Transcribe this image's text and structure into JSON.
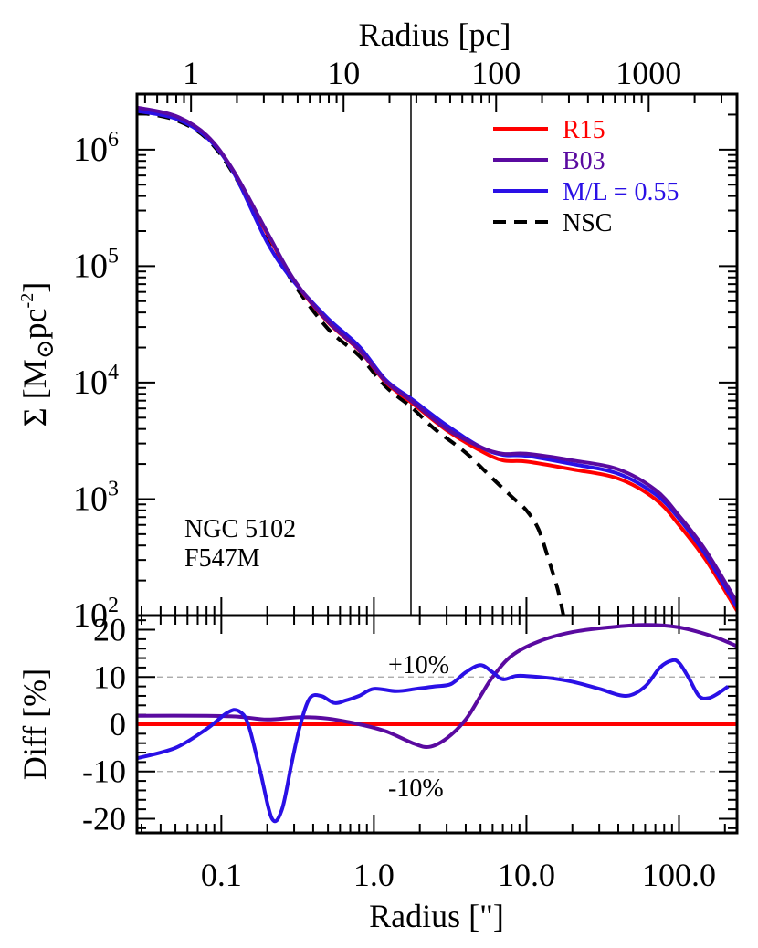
{
  "chart_data": [
    {
      "type": "line",
      "panel": "top",
      "top_xlabel": "Radius [pc]",
      "top_xticks": [
        "1",
        "10",
        "100",
        "1000"
      ],
      "top_xtick_values": [
        1,
        10,
        100,
        1000
      ],
      "ylabel": "Σ [M⊙pc⁻²]",
      "ylabel_parts": {
        "sym": "Σ [M",
        "sun": "⊙",
        "pc": "pc",
        "exp": "-2",
        "close": "]"
      },
      "yscale": "log",
      "ylim": [
        100,
        3000000
      ],
      "yticks": [
        {
          "base": "10",
          "exp": "2",
          "value": 100
        },
        {
          "base": "10",
          "exp": "3",
          "value": 1000
        },
        {
          "base": "10",
          "exp": "4",
          "value": 10000
        },
        {
          "base": "10",
          "exp": "5",
          "value": 100000
        },
        {
          "base": "10",
          "exp": "6",
          "value": 1000000
        }
      ],
      "xscale": "log",
      "xlim": [
        0.028,
        240
      ],
      "vline_x": 1.75,
      "annotation": [
        "NGC 5102",
        "F547M"
      ],
      "legend_position": "top-right",
      "series": [
        {
          "name": "R15",
          "color": "#ff0000",
          "style": "solid",
          "x": [
            0.028,
            0.05,
            0.08,
            0.12,
            0.2,
            0.3,
            0.5,
            0.8,
            1.2,
            1.75,
            3,
            5,
            7,
            10,
            20,
            40,
            70,
            100,
            150,
            240
          ],
          "y": [
            2250000,
            1900000,
            1300000,
            650000,
            190000,
            75000,
            33000,
            19000,
            10000,
            6800,
            3900,
            2600,
            2150,
            2100,
            1800,
            1500,
            1000,
            600,
            300,
            110
          ]
        },
        {
          "name": "B03",
          "color": "#5a0aa0",
          "style": "solid",
          "x": [
            0.028,
            0.05,
            0.08,
            0.12,
            0.2,
            0.3,
            0.5,
            0.8,
            1.2,
            1.75,
            3,
            5,
            7,
            10,
            20,
            40,
            70,
            100,
            150,
            240
          ],
          "y": [
            2300000,
            1950000,
            1330000,
            660000,
            195000,
            76000,
            33500,
            19200,
            10200,
            7000,
            4000,
            2800,
            2450,
            2450,
            2150,
            1800,
            1200,
            720,
            360,
            130
          ]
        },
        {
          "name": "M/L = 0.55",
          "color": "#2a10e6",
          "style": "solid",
          "x": [
            0.028,
            0.05,
            0.08,
            0.12,
            0.2,
            0.3,
            0.5,
            0.8,
            1.2,
            1.75,
            3,
            5,
            7,
            10,
            20,
            40,
            70,
            100,
            150,
            240
          ],
          "y": [
            2150000,
            1850000,
            1280000,
            640000,
            160000,
            73000,
            35500,
            20500,
            10500,
            7300,
            4300,
            2800,
            2400,
            2350,
            2000,
            1650,
            1100,
            680,
            330,
            118
          ]
        },
        {
          "name": "NSC",
          "color": "#000000",
          "style": "dashed",
          "x": [
            0.028,
            0.05,
            0.08,
            0.12,
            0.2,
            0.3,
            0.5,
            0.8,
            1.2,
            1.75,
            2.5,
            4,
            6,
            8,
            10,
            12,
            14,
            16,
            17.5
          ],
          "y": [
            2100000,
            1800000,
            1250000,
            620000,
            180000,
            70000,
            29000,
            17000,
            9200,
            6200,
            4000,
            2500,
            1500,
            1050,
            800,
            550,
            300,
            170,
            100
          ]
        }
      ]
    },
    {
      "type": "line",
      "panel": "bottom",
      "xlabel": "Radius [\"]",
      "xticks": [
        "0.1",
        "1.0",
        "10.0",
        "100.0"
      ],
      "xtick_values": [
        0.1,
        1,
        10,
        100
      ],
      "xscale": "log",
      "xlim": [
        0.028,
        240
      ],
      "ylabel": "Diff [%]",
      "ylim": [
        -23,
        23
      ],
      "yticks": [
        "-20",
        "-10",
        "0",
        "10",
        "20"
      ],
      "ytick_values": [
        -20,
        -10,
        0,
        10,
        20
      ],
      "reference_lines": [
        {
          "y": 10,
          "label": "+10%"
        },
        {
          "y": -10,
          "label": "-10%"
        }
      ],
      "series": [
        {
          "name": "R15",
          "color": "#ff0000",
          "x": [
            0.028,
            240
          ],
          "y": [
            0,
            0
          ]
        },
        {
          "name": "B03",
          "color": "#5a0aa0",
          "x": [
            0.028,
            0.08,
            0.13,
            0.2,
            0.33,
            0.5,
            0.8,
            1.2,
            1.8,
            2.3,
            3,
            4,
            5,
            6,
            8,
            12,
            20,
            35,
            60,
            100,
            170,
            240
          ],
          "y": [
            1.8,
            1.8,
            1.6,
            1.0,
            1.5,
            1.2,
            0,
            -1.5,
            -4,
            -4.8,
            -3,
            1,
            6,
            10,
            14.5,
            17.5,
            19.5,
            20.5,
            21,
            20.5,
            18.5,
            16.5
          ]
        },
        {
          "name": "M/L = 0.55",
          "color": "#2a10e6",
          "x": [
            0.028,
            0.05,
            0.08,
            0.11,
            0.13,
            0.15,
            0.18,
            0.215,
            0.25,
            0.29,
            0.33,
            0.38,
            0.45,
            0.55,
            0.65,
            0.8,
            1.0,
            1.4,
            1.9,
            2.5,
            3.2,
            4,
            5,
            6,
            7,
            8.5,
            10,
            14,
            20,
            30,
            45,
            60,
            75,
            90,
            100,
            115,
            135,
            155,
            180,
            210
          ],
          "y": [
            -7.2,
            -5,
            -1,
            2.5,
            2.8,
            0,
            -10,
            -20,
            -18,
            -8,
            0,
            5.5,
            6,
            4.5,
            5,
            6,
            7.5,
            7,
            7.5,
            8,
            8.5,
            11,
            12.5,
            11,
            9.5,
            10.2,
            10.2,
            9.8,
            9,
            7.5,
            6,
            8,
            12,
            13.5,
            13,
            10,
            6,
            5.5,
            6.5,
            8
          ]
        }
      ]
    }
  ]
}
